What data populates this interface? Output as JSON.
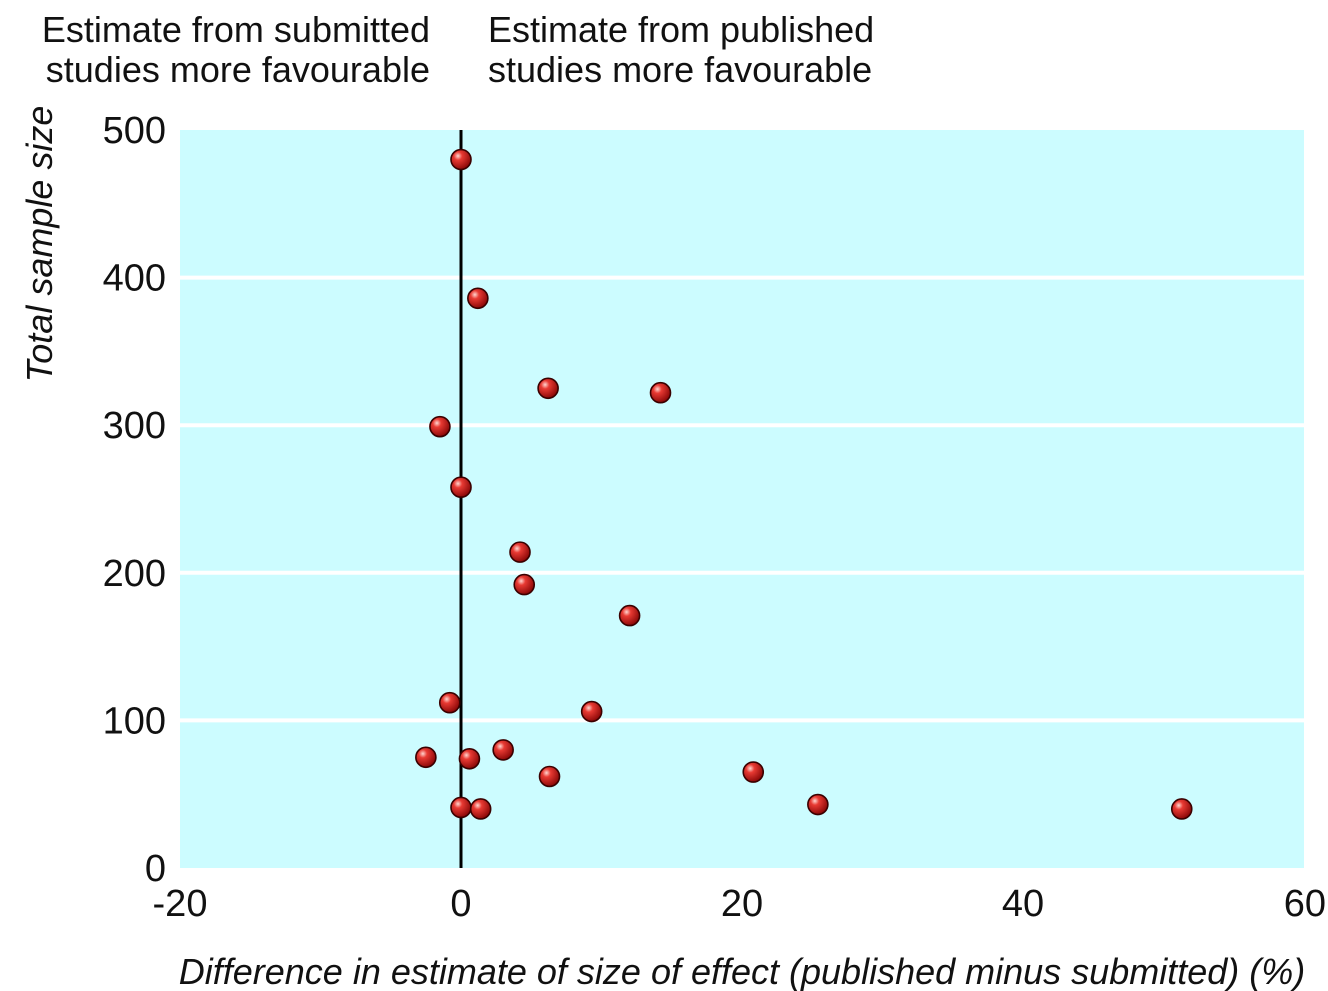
{
  "chart_data": {
    "type": "scatter",
    "title": "",
    "xlabel": "Difference in estimate of size of effect (published minus submitted) (%)",
    "ylabel": "Total sample size",
    "xlim": [
      -20,
      60
    ],
    "ylim": [
      0,
      500
    ],
    "xticks": [
      -20,
      0,
      20,
      40,
      60
    ],
    "yticks": [
      0,
      100,
      200,
      300,
      400,
      500
    ],
    "xtick_labels": [
      "-20",
      "0",
      "20",
      "40",
      "60"
    ],
    "ytick_labels": [
      "0",
      "100",
      "200",
      "300",
      "400",
      "500"
    ],
    "grid": "horizontal",
    "reference_line_x": 0,
    "annotations": [
      {
        "lines": [
          "Estimate from submitted",
          "studies more favourable"
        ],
        "side": "left-of-zero"
      },
      {
        "lines": [
          "Estimate from published",
          "studies more favourable"
        ],
        "side": "right-of-zero"
      }
    ],
    "colors": {
      "plot_background": "#ccfcff",
      "gridlines": "#ffffff",
      "points": "#d41a1a",
      "reference_line": "#000000"
    },
    "series": [
      {
        "points": [
          {
            "x": 0,
            "y": 480
          },
          {
            "x": 1.2,
            "y": 386
          },
          {
            "x": 6.2,
            "y": 325
          },
          {
            "x": 14.2,
            "y": 322
          },
          {
            "x": -1.5,
            "y": 299
          },
          {
            "x": 0,
            "y": 258
          },
          {
            "x": 4.2,
            "y": 214
          },
          {
            "x": 4.5,
            "y": 192
          },
          {
            "x": 12,
            "y": 171
          },
          {
            "x": -0.8,
            "y": 112
          },
          {
            "x": 9.3,
            "y": 106
          },
          {
            "x": -2.5,
            "y": 75
          },
          {
            "x": 0.6,
            "y": 74
          },
          {
            "x": 3,
            "y": 80
          },
          {
            "x": 6.3,
            "y": 62
          },
          {
            "x": 20.8,
            "y": 65
          },
          {
            "x": 25.4,
            "y": 43
          },
          {
            "x": 51.3,
            "y": 40
          },
          {
            "x": 0,
            "y": 41
          },
          {
            "x": 1.4,
            "y": 40
          }
        ]
      }
    ]
  }
}
